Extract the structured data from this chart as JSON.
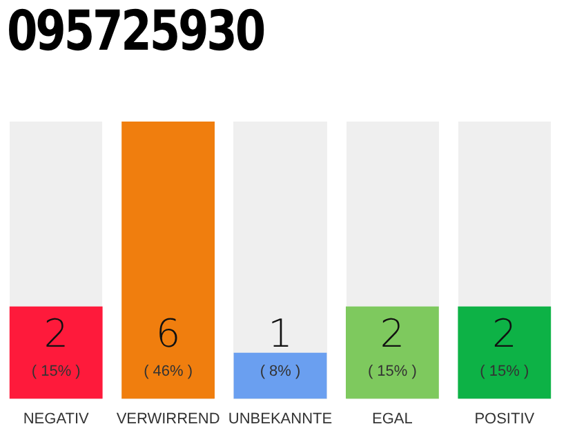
{
  "chart_data": {
    "type": "bar",
    "title": "095725930",
    "categories": [
      "NEGATIV",
      "VERWIRREND",
      "UNBEKANNTE",
      "EGAL",
      "POSITIV"
    ],
    "values": [
      2,
      6,
      1,
      2,
      2
    ],
    "colors": [
      "#fe1a3b",
      "#f07e0e",
      "#6a9ff0",
      "#7ec95e",
      "#0db246"
    ],
    "annotations": [
      "( 15% )",
      "( 46% )",
      "( 8% )",
      "( 15% )",
      "( 15% )"
    ],
    "data_labels": true,
    "tick_labels": "x",
    "grid": false,
    "legend": false
  }
}
